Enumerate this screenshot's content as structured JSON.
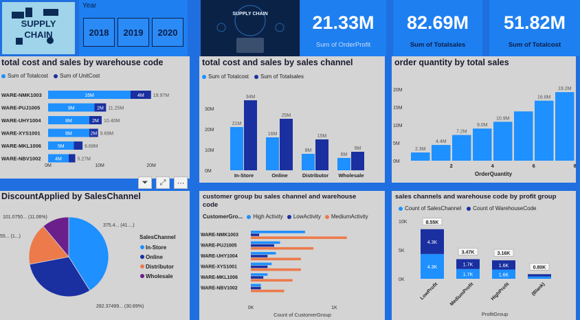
{
  "colors": {
    "light": "#1e90ff",
    "dark": "#1a2fa0",
    "orange": "#ec7a4b",
    "purple": "#6b1f8a",
    "panel": "#d4d4d4",
    "page": "#1f6fe0"
  },
  "logo": {
    "line1": "SUPPLY",
    "line2": "CHAIN"
  },
  "year_slicer": {
    "label": "Year",
    "options": [
      "2018",
      "2019",
      "2020"
    ]
  },
  "banner": {
    "text": "SUPPLY CHAIN"
  },
  "kpis": [
    {
      "value": "21.33M",
      "label": "Sum of OrderProfit"
    },
    {
      "value": "82.69M",
      "label": "Sum of Totalsales"
    },
    {
      "value": "51.82M",
      "label": "Sum of Totalcost"
    }
  ],
  "panel1": {
    "title": "total cost and sales by warehouse code",
    "legend": [
      "Sum of Totalcost",
      "Sum of UnitCost"
    ],
    "axis_ticks": [
      "0M",
      "10M",
      "20M"
    ],
    "chart_data": {
      "type": "bar",
      "categories": [
        "WARE-NMK1003",
        "WARE-PUJ1005",
        "WARE-UHY1004",
        "WARE-XYS1001",
        "WARE-MKL1006",
        "WARE-NBV1002"
      ],
      "series": [
        {
          "name": "Sum of Totalcost",
          "values": [
            16,
            9,
            8,
            8,
            5,
            4
          ],
          "labels": [
            "16M",
            "9M",
            "8M",
            "8M",
            "5M",
            "4M"
          ]
        },
        {
          "name": "Sum of UnitCost",
          "values": [
            3.97,
            2.25,
            2.4,
            1.69,
            1.68,
            1.27
          ],
          "labels": [
            "4M",
            "2M",
            "2M",
            "2M",
            "",
            ""
          ]
        }
      ],
      "totals": [
        "19.97M",
        "11.25M",
        "10.40M",
        "9.69M",
        "6.68M",
        "5.27M"
      ],
      "xlim": [
        0,
        20
      ]
    }
  },
  "panel2": {
    "title": "total cost and sales by sales channel",
    "legend": [
      "Sum of Totalcost",
      "Sum of Totalsales"
    ],
    "y_ticks": [
      "30M",
      "20M",
      "10M",
      "0M"
    ],
    "chart_data": {
      "type": "bar",
      "categories": [
        "In-Store",
        "Online",
        "Distributor",
        "Wholesale"
      ],
      "series": [
        {
          "name": "Sum of Totalcost",
          "values": [
            21,
            16,
            8,
            6
          ],
          "labels": [
            "21M",
            "16M",
            "8M",
            "6M"
          ]
        },
        {
          "name": "Sum of Totalsales",
          "values": [
            34,
            25,
            15,
            9
          ],
          "labels": [
            "34M",
            "25M",
            "15M",
            "9M"
          ]
        }
      ],
      "ylim": [
        0,
        35
      ]
    }
  },
  "panel3": {
    "title": "order quantity by total sales",
    "xlabel": "OrderQuantity",
    "y_ticks": [
      "20M",
      "15M",
      "10M",
      "5M",
      "0M"
    ],
    "x_ticks": [
      "2",
      "4",
      "6",
      "8"
    ],
    "chart_data": {
      "type": "bar",
      "categories": [
        "1",
        "2",
        "3",
        "4",
        "5",
        "6",
        "7",
        "8"
      ],
      "values": [
        2.3,
        4.4,
        7.2,
        9.0,
        10.9,
        13.8,
        16.8,
        19.2
      ],
      "labels": [
        "2.3M",
        "4.4M",
        "7.2M",
        "9.0M",
        "10.9M",
        "",
        "16.8M",
        "19.2M"
      ],
      "ylim": [
        0,
        20
      ]
    }
  },
  "panel4": {
    "title": "DiscountApplied by SalesChannel",
    "legend_title": "SalesChannel",
    "legend": [
      "In-Store",
      "Online",
      "Distributor",
      "Wholesale"
    ],
    "slice_labels": [
      "375.4... (41....)",
      "282.37499... (30.89%)",
      "55... (1...)",
      "101.0750... (11.06%)"
    ],
    "chart_data": {
      "type": "pie",
      "categories": [
        "In-Store",
        "Online",
        "Distributor",
        "Wholesale"
      ],
      "values": [
        41.1,
        30.89,
        16.95,
        11.06
      ]
    }
  },
  "panel5": {
    "title_line1": "customer group bu sales channel and warehouse",
    "title_line2": "code",
    "legend_label": "CustomerGro...",
    "legend": [
      "High Activity",
      "LowActivity",
      "MediumActivity"
    ],
    "x_ticks": [
      "0K",
      "1K"
    ],
    "xlabel": "Count of CustomerGroup",
    "chart_data": {
      "type": "bar",
      "categories": [
        "WARE-NMK1003",
        "WARE-PUJ1005",
        "WARE-UHY1004",
        "WARE-XYS1001",
        "WARE-MKL1006",
        "WARE-NBV1002"
      ],
      "series": [
        {
          "name": "High Activity",
          "values": [
            0.65,
            0.35,
            0.3,
            0.25,
            0.2,
            0.12
          ]
        },
        {
          "name": "LowActivity",
          "values": [
            0.1,
            0.28,
            0.2,
            0.2,
            0.15,
            0.12
          ]
        },
        {
          "name": "MediumActivity",
          "values": [
            1.15,
            0.75,
            0.6,
            0.6,
            0.5,
            0.4
          ]
        }
      ],
      "xlim": [
        0,
        1.4
      ]
    }
  },
  "panel6": {
    "title": "sales channels and warehouse code by profit group",
    "legend": [
      "Count of SalesChannel",
      "Count of WarehouseCode"
    ],
    "y_ticks": [
      "10K",
      "5K",
      "0K"
    ],
    "xlabel": "ProfitGroup",
    "chart_data": {
      "type": "bar",
      "categories": [
        "LowProfit",
        "MediumProfit",
        "HighProfit",
        "(Blank)"
      ],
      "series": [
        {
          "name": "Count of SalesChannel",
          "values": [
            4.3,
            1.7,
            1.6,
            0.4
          ],
          "labels": [
            "4.3K",
            "1.7K",
            "1.6K",
            ""
          ]
        },
        {
          "name": "Count of WarehouseCode",
          "values": [
            4.3,
            1.7,
            1.6,
            0.4
          ],
          "labels": [
            "4.3K",
            "1.7K",
            "1.6K",
            ""
          ]
        }
      ],
      "totals": [
        "8.55K",
        "3.47K",
        "3.16K",
        "0.80K"
      ],
      "ylim": [
        0,
        10
      ]
    }
  }
}
